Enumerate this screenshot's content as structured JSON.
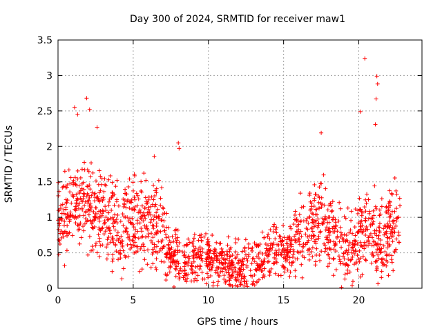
{
  "chart_data": {
    "type": "scatter",
    "title": "Day 300 of 2024, SRMTID for receiver maw1",
    "xlabel": "GPS time / hours",
    "ylabel": "SRMTID / TECUs",
    "xlim": [
      0,
      24.2
    ],
    "ylim": [
      0,
      3.5
    ],
    "xticks": [
      0,
      5,
      10,
      15,
      20
    ],
    "xtick_labels": [
      "0",
      "5",
      "10",
      "15",
      "20"
    ],
    "yticks": [
      0,
      0.5,
      1,
      1.5,
      2,
      2.5,
      3,
      3.5
    ],
    "ytick_labels": [
      "0",
      "0.5",
      "1",
      "1.5",
      "2",
      "2.5",
      "3",
      "3.5"
    ],
    "grid": true,
    "marker": "plus",
    "color": "#ff0000",
    "series": [
      {
        "name": "SRMTID",
        "x_start": 0.0,
        "x_end": 22.75,
        "mean_envelope": [
          [
            0.0,
            0.95
          ],
          [
            0.5,
            1.05
          ],
          [
            1.0,
            1.2
          ],
          [
            1.5,
            1.15
          ],
          [
            2.0,
            1.2
          ],
          [
            2.5,
            1.1
          ],
          [
            3.0,
            1.0
          ],
          [
            3.5,
            0.9
          ],
          [
            4.0,
            0.85
          ],
          [
            4.5,
            0.95
          ],
          [
            5.0,
            1.0
          ],
          [
            5.5,
            0.9
          ],
          [
            6.0,
            0.95
          ],
          [
            6.5,
            0.85
          ],
          [
            7.0,
            0.75
          ],
          [
            7.5,
            0.5
          ],
          [
            8.0,
            0.4
          ],
          [
            8.5,
            0.35
          ],
          [
            9.0,
            0.4
          ],
          [
            9.5,
            0.45
          ],
          [
            10.0,
            0.45
          ],
          [
            10.5,
            0.4
          ],
          [
            11.0,
            0.35
          ],
          [
            11.5,
            0.3
          ],
          [
            12.0,
            0.25
          ],
          [
            12.5,
            0.3
          ],
          [
            13.0,
            0.35
          ],
          [
            13.5,
            0.4
          ],
          [
            14.0,
            0.45
          ],
          [
            14.5,
            0.55
          ],
          [
            15.0,
            0.5
          ],
          [
            15.5,
            0.55
          ],
          [
            16.0,
            0.7
          ],
          [
            16.5,
            0.75
          ],
          [
            17.0,
            0.85
          ],
          [
            17.5,
            1.0
          ],
          [
            18.0,
            0.85
          ],
          [
            18.5,
            0.7
          ],
          [
            19.0,
            0.65
          ],
          [
            19.5,
            0.6
          ],
          [
            20.0,
            0.75
          ],
          [
            20.5,
            0.8
          ],
          [
            21.0,
            0.75
          ],
          [
            21.5,
            0.6
          ],
          [
            22.0,
            0.8
          ],
          [
            22.5,
            0.9
          ],
          [
            22.75,
            0.95
          ]
        ],
        "spread": 0.45,
        "peaks": [
          {
            "x": 1.1,
            "y": 2.55
          },
          {
            "x": 1.3,
            "y": 2.45
          },
          {
            "x": 1.9,
            "y": 2.68
          },
          {
            "x": 2.1,
            "y": 2.52
          },
          {
            "x": 2.6,
            "y": 2.27
          },
          {
            "x": 6.4,
            "y": 1.86
          },
          {
            "x": 8.0,
            "y": 2.05
          },
          {
            "x": 8.05,
            "y": 1.97
          },
          {
            "x": 17.5,
            "y": 2.19
          },
          {
            "x": 20.1,
            "y": 2.49
          },
          {
            "x": 20.4,
            "y": 3.24
          },
          {
            "x": 21.2,
            "y": 2.99
          },
          {
            "x": 21.25,
            "y": 2.88
          },
          {
            "x": 21.15,
            "y": 2.67
          },
          {
            "x": 21.1,
            "y": 2.31
          }
        ]
      }
    ]
  }
}
